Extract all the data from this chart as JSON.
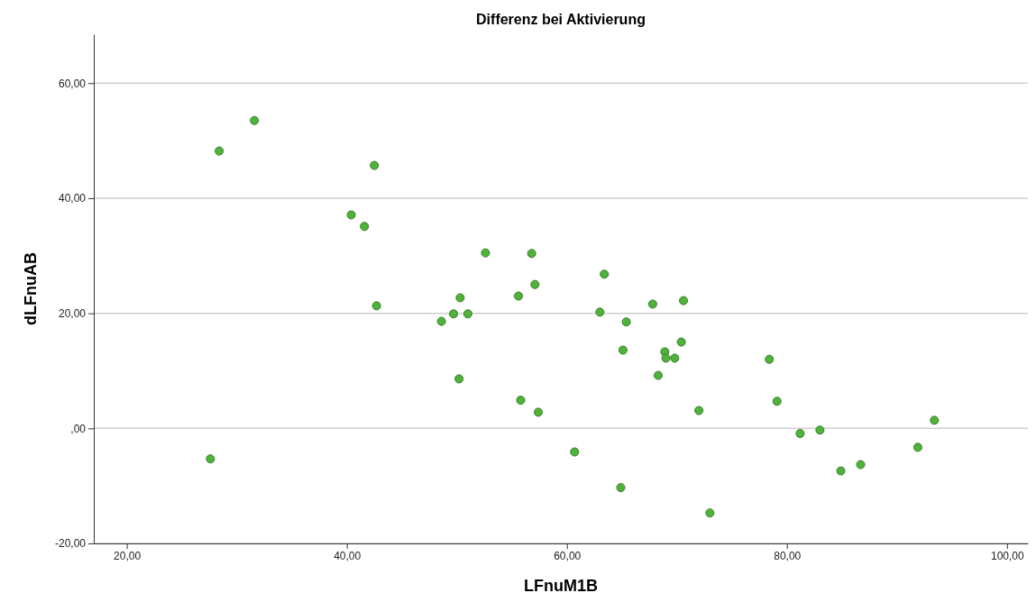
{
  "chart_data": {
    "type": "scatter",
    "title": "Differenz bei Aktivierung",
    "xlabel": "LFnuM1B",
    "ylabel": "dLFnuAB",
    "xlim": [
      17,
      101.9
    ],
    "ylim": [
      -20,
      68.5
    ],
    "xticks": [
      {
        "value": 20,
        "label": "20,00"
      },
      {
        "value": 40,
        "label": "40,00"
      },
      {
        "value": 60,
        "label": "60,00"
      },
      {
        "value": 80,
        "label": "80,00"
      },
      {
        "value": 100,
        "label": "100,00"
      }
    ],
    "yticks": [
      {
        "value": -20,
        "label": "-20,00"
      },
      {
        "value": 0,
        "label": ",00"
      },
      {
        "value": 20,
        "label": "20,00"
      },
      {
        "value": 40,
        "label": "40,00"
      },
      {
        "value": 60,
        "label": "60,00"
      }
    ],
    "grid": "y",
    "marker": "circle",
    "series": [
      {
        "color": "#4fb33a",
        "x": [
          27.6,
          28.4,
          31.6,
          40.4,
          41.6,
          42.5,
          42.7,
          48.6,
          49.7,
          50.3,
          51.0,
          50.2,
          52.6,
          56.8,
          57.1,
          55.6,
          55.8,
          57.4,
          60.7,
          63.0,
          63.4,
          65.4,
          65.1,
          64.9,
          67.8,
          68.3,
          68.9,
          69.0,
          69.8,
          70.4,
          70.6,
          72.0,
          73.0,
          78.4,
          79.1,
          81.2,
          83.0,
          84.9,
          86.7,
          91.9,
          93.4
        ],
        "values": [
          -5.3,
          48.2,
          53.5,
          37.1,
          35.1,
          45.7,
          21.3,
          18.6,
          19.9,
          22.7,
          19.9,
          8.6,
          30.5,
          30.4,
          25.0,
          23.0,
          4.9,
          2.8,
          -4.1,
          20.2,
          26.8,
          18.5,
          13.6,
          -10.3,
          21.6,
          9.2,
          13.3,
          12.2,
          12.2,
          15.0,
          22.2,
          3.1,
          -14.7,
          12.0,
          4.7,
          -0.9,
          -0.3,
          -7.4,
          -6.3,
          -3.3,
          1.4
        ]
      }
    ]
  }
}
